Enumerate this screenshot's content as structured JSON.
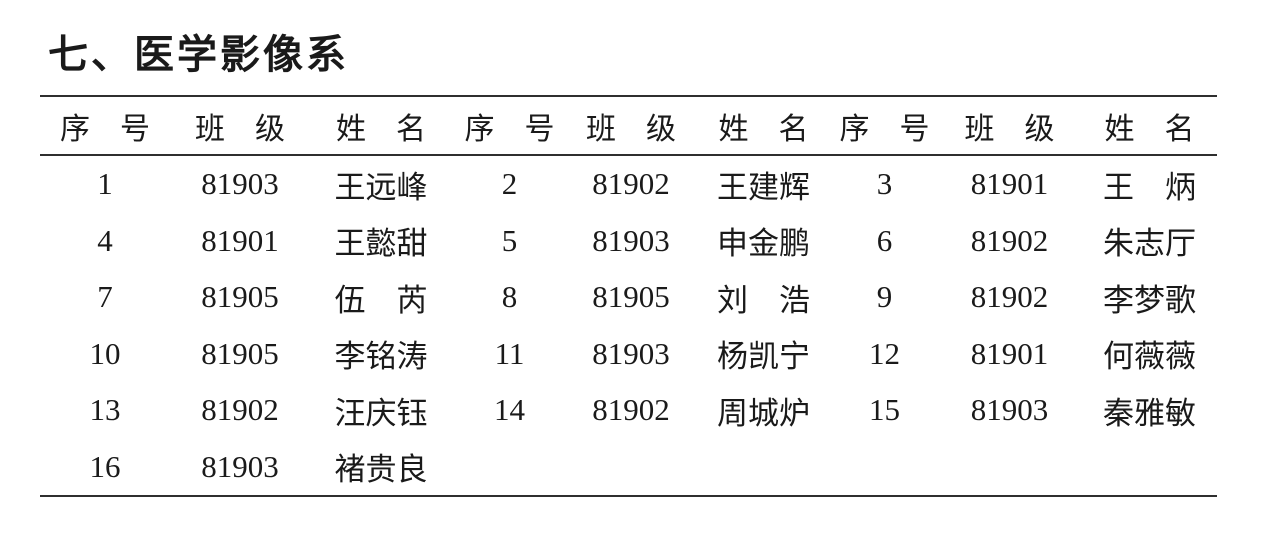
{
  "colors": {
    "background": "#ffffff",
    "text": "#1a1a1a",
    "rule": "#2f2f2f"
  },
  "title": "七、医学影像系",
  "table": {
    "headers": [
      "序　号",
      "班　级",
      "姓　名",
      "序　号",
      "班　级",
      "姓　名",
      "序　号",
      "班　级",
      "姓　名"
    ],
    "rows": [
      [
        "1",
        "81903",
        "王远峰",
        "2",
        "81902",
        "王建辉",
        "3",
        "81901",
        "王　炳"
      ],
      [
        "4",
        "81901",
        "王懿甜",
        "5",
        "81903",
        "申金鹏",
        "6",
        "81902",
        "朱志厅"
      ],
      [
        "7",
        "81905",
        "伍　芮",
        "8",
        "81905",
        "刘　浩",
        "9",
        "81902",
        "李梦歌"
      ],
      [
        "10",
        "81905",
        "李铭涛",
        "11",
        "81903",
        "杨凯宁",
        "12",
        "81901",
        "何薇薇"
      ],
      [
        "13",
        "81902",
        "汪庆钰",
        "14",
        "81902",
        "周城炉",
        "15",
        "81903",
        "秦雅敏"
      ],
      [
        "16",
        "81903",
        "褚贵良",
        "",
        "",
        "",
        "",
        "",
        ""
      ]
    ]
  }
}
